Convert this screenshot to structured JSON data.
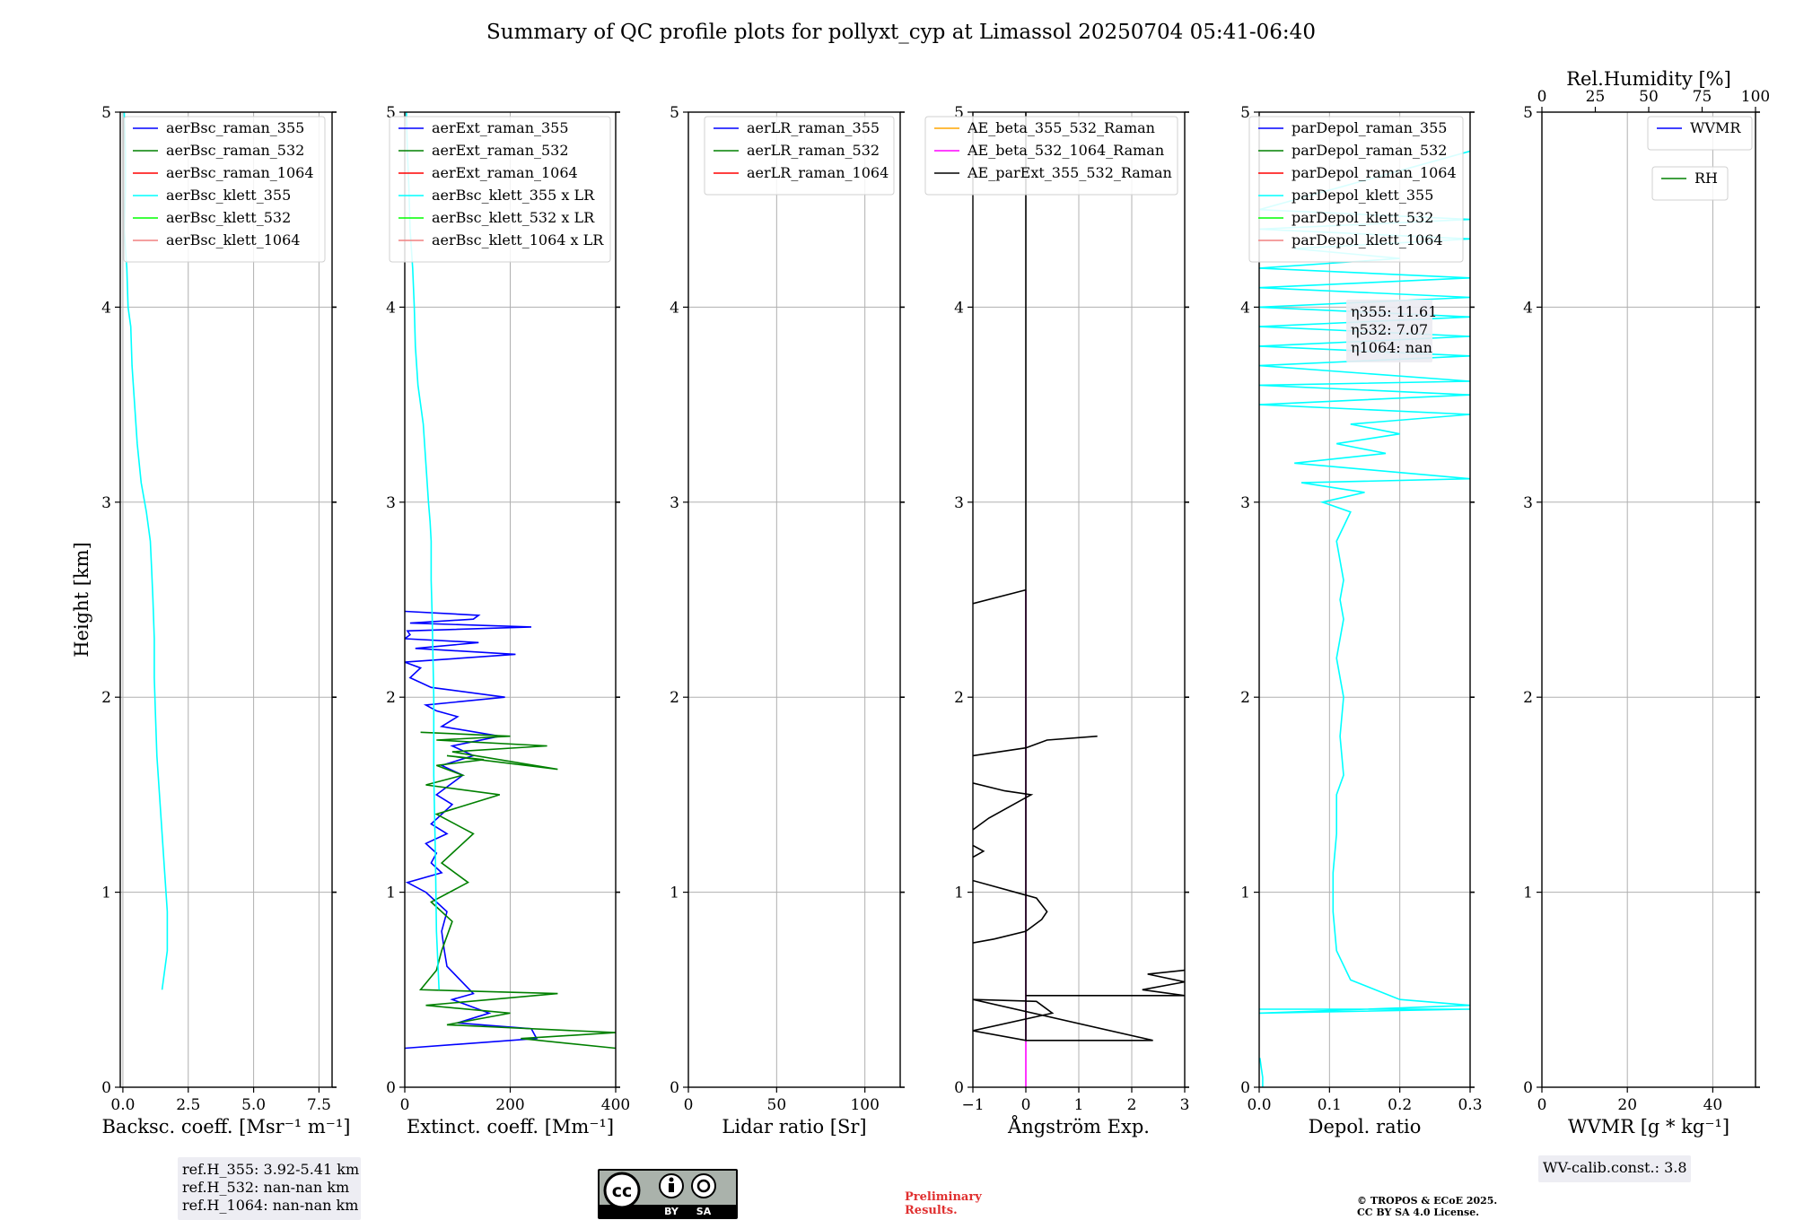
{
  "title": "Summary of QC profile plots for pollyxt_cyp at Limassol 20250704 05:41-06:40",
  "chart_data": [
    {
      "type": "line",
      "xlabel": "Backsc. coeff. [Msr⁻¹ m⁻¹]",
      "ylabel": "Height [km]",
      "xlim": [
        -0.1,
        8.0
      ],
      "ylim": [
        0,
        5
      ],
      "xticks": [
        0.0,
        2.5,
        5.0,
        7.5
      ],
      "xtick_labels": [
        "0.0",
        "2.5",
        "5.0",
        "7.5"
      ],
      "yticks": [
        0,
        1,
        2,
        3,
        4,
        5
      ],
      "ytick_labels": [
        "0",
        "1",
        "2",
        "3",
        "4",
        "5"
      ],
      "grid": true,
      "legend_position": "top-right",
      "legend": [
        {
          "label": "aerBsc_raman_355",
          "color": "#0000ff"
        },
        {
          "label": "aerBsc_raman_532",
          "color": "#008000"
        },
        {
          "label": "aerBsc_raman_1064",
          "color": "#ff0000"
        },
        {
          "label": "aerBsc_klett_355",
          "color": "#00ffff"
        },
        {
          "label": "aerBsc_klett_532",
          "color": "#00ff00"
        },
        {
          "label": "aerBsc_klett_1064",
          "color": "#f08080"
        }
      ],
      "series": [
        {
          "name": "aerBsc_klett_355",
          "color": "#00ffff",
          "x": [
            1.5,
            1.7,
            1.7,
            1.6,
            1.5,
            1.4,
            1.3,
            1.25,
            1.2,
            1.2,
            1.15,
            1.1,
            1.05,
            0.9,
            0.7,
            0.55,
            0.45,
            0.35,
            0.3,
            0.2,
            0.15,
            0.05,
            0.1,
            0.1,
            0.05
          ],
          "y": [
            0.5,
            0.7,
            0.9,
            1.1,
            1.3,
            1.5,
            1.7,
            1.9,
            2.1,
            2.3,
            2.5,
            2.65,
            2.8,
            2.95,
            3.1,
            3.3,
            3.5,
            3.7,
            3.9,
            4.0,
            4.2,
            4.4,
            4.6,
            4.8,
            5.0
          ]
        }
      ],
      "info_box": [
        "ref.H_355: 3.92-5.41 km",
        "ref.H_532: nan-nan km",
        "ref.H_1064: nan-nan km"
      ]
    },
    {
      "type": "line",
      "xlabel": "Extinct. coeff. [Mm⁻¹]",
      "xlim": [
        0,
        400
      ],
      "ylim": [
        0,
        5
      ],
      "xticks": [
        0,
        200,
        400
      ],
      "xtick_labels": [
        "0",
        "200",
        "400"
      ],
      "yticks": [
        0,
        1,
        2,
        3,
        4,
        5
      ],
      "ytick_labels": [
        "0",
        "1",
        "2",
        "3",
        "4",
        "5"
      ],
      "grid": true,
      "legend_position": "top-right",
      "legend": [
        {
          "label": "aerExt_raman_355",
          "color": "#0000ff"
        },
        {
          "label": "aerExt_raman_532",
          "color": "#008000"
        },
        {
          "label": "aerExt_raman_1064",
          "color": "#ff0000"
        },
        {
          "label": "aerBsc_klett_355 x LR",
          "color": "#00ffff"
        },
        {
          "label": "aerBsc_klett_532 x LR",
          "color": "#00ff00"
        },
        {
          "label": "aerBsc_klett_1064 x LR",
          "color": "#f08080"
        }
      ],
      "series": [
        {
          "name": "aerExt_raman_355",
          "color": "#0000ff",
          "x": [
            0,
            250,
            240,
            100,
            160,
            90,
            130,
            80,
            75,
            70,
            80,
            40,
            5,
            70,
            50,
            60,
            40,
            80,
            50,
            90,
            60,
            110,
            70,
            130,
            90,
            180,
            70,
            100,
            60,
            40,
            190,
            50,
            10,
            30,
            0,
            210,
            20,
            140,
            0,
            10,
            5,
            240,
            10,
            130,
            140,
            0
          ],
          "y": [
            0.2,
            0.25,
            0.3,
            0.33,
            0.38,
            0.45,
            0.48,
            0.62,
            0.7,
            0.8,
            0.9,
            1.0,
            1.05,
            1.1,
            1.15,
            1.2,
            1.25,
            1.3,
            1.35,
            1.45,
            1.5,
            1.6,
            1.65,
            1.7,
            1.75,
            1.8,
            1.85,
            1.9,
            1.93,
            1.96,
            2.0,
            2.05,
            2.1,
            2.15,
            2.18,
            2.22,
            2.25,
            2.28,
            2.3,
            2.32,
            2.34,
            2.36,
            2.38,
            2.4,
            2.42,
            2.44
          ]
        },
        {
          "name": "aerExt_raman_532",
          "color": "#008000",
          "x": [
            400,
            220,
            400,
            80,
            200,
            40,
            290,
            30,
            60,
            70,
            90,
            50,
            120,
            70,
            130,
            60,
            180,
            40,
            110,
            60,
            150,
            80,
            290,
            90,
            270,
            60,
            200,
            30
          ],
          "y": [
            0.2,
            0.25,
            0.28,
            0.32,
            0.38,
            0.42,
            0.48,
            0.5,
            0.6,
            0.7,
            0.85,
            0.95,
            1.05,
            1.15,
            1.3,
            1.4,
            1.5,
            1.55,
            1.6,
            1.65,
            1.68,
            1.7,
            1.63,
            1.72,
            1.75,
            1.78,
            1.8,
            1.82
          ]
        },
        {
          "name": "aerBsc_klett_355 x LR",
          "color": "#00ffff",
          "x": [
            65,
            60,
            58,
            55,
            55,
            52,
            50,
            50,
            48,
            45,
            40,
            35,
            25,
            20,
            18,
            15,
            10,
            8,
            5,
            3
          ],
          "y": [
            0.5,
            0.8,
            1.2,
            1.6,
            2.0,
            2.4,
            2.6,
            2.8,
            2.9,
            3.0,
            3.2,
            3.4,
            3.6,
            3.8,
            4.0,
            4.2,
            4.4,
            4.6,
            4.8,
            5.0
          ]
        }
      ]
    },
    {
      "type": "line",
      "xlabel": "Lidar ratio [Sr]",
      "xlim": [
        0,
        120
      ],
      "ylim": [
        0,
        5
      ],
      "xticks": [
        0,
        50,
        100
      ],
      "xtick_labels": [
        "0",
        "50",
        "100"
      ],
      "yticks": [
        0,
        1,
        2,
        3,
        4,
        5
      ],
      "ytick_labels": [
        "0",
        "1",
        "2",
        "3",
        "4",
        "5"
      ],
      "grid": true,
      "legend_position": "top-right",
      "legend": [
        {
          "label": "aerLR_raman_355",
          "color": "#0000ff"
        },
        {
          "label": "aerLR_raman_532",
          "color": "#008000"
        },
        {
          "label": "aerLR_raman_1064",
          "color": "#ff0000"
        }
      ],
      "series": []
    },
    {
      "type": "line",
      "xlabel": "Ångström Exp.",
      "xlim": [
        -1,
        3
      ],
      "ylim": [
        0,
        5
      ],
      "xticks": [
        -1,
        0,
        1,
        2,
        3
      ],
      "xtick_labels": [
        "−1",
        "0",
        "1",
        "2",
        "3"
      ],
      "yticks": [
        0,
        1,
        2,
        3,
        4,
        5
      ],
      "ytick_labels": [
        "0",
        "1",
        "2",
        "3",
        "4",
        "5"
      ],
      "grid": true,
      "legend_position": "top-right",
      "legend": [
        {
          "label": "AE_beta_355_532_Raman",
          "color": "#ffa500"
        },
        {
          "label": "AE_beta_532_1064_Raman",
          "color": "#ff00ff"
        },
        {
          "label": "AE_parExt_355_532_Raman",
          "color": "#000000"
        }
      ],
      "series": [
        {
          "name": "AE_beta_532_1064_Raman",
          "color": "#ff00ff",
          "x": [
            0,
            0
          ],
          "y": [
            0.0,
            2.55
          ]
        },
        {
          "name": "AE_parExt_355_532_Raman",
          "color": "#000000",
          "x": [
            0,
            0,
            0,
            -1,
            0.5,
            0.2,
            -1,
            2.4,
            0,
            0,
            3,
            2.2,
            3,
            2.3,
            3
          ],
          "y": [
            5.0,
            2.55,
            0.24,
            0.29,
            0.38,
            0.44,
            0.45,
            0.24,
            0.24,
            0.47,
            0.47,
            0.5,
            0.54,
            0.58,
            0.6
          ]
        },
        {
          "name": "AE_parExt_355_532_Raman",
          "color": "#000000",
          "x": [
            -1,
            -0.6,
            0,
            0.3,
            0.4,
            0.2,
            -1
          ],
          "y": [
            0.74,
            0.76,
            0.8,
            0.86,
            0.9,
            0.97,
            1.06
          ]
        },
        {
          "name": "AE_parExt_355_532_Raman",
          "color": "#000000",
          "x": [
            -1,
            -0.8,
            -1
          ],
          "y": [
            1.18,
            1.21,
            1.24
          ]
        },
        {
          "name": "AE_parExt_355_532_Raman",
          "color": "#000000",
          "x": [
            -1,
            -0.7,
            0.1,
            -0.4,
            -1
          ],
          "y": [
            1.32,
            1.38,
            1.5,
            1.52,
            1.56
          ]
        },
        {
          "name": "AE_parExt_355_532_Raman",
          "color": "#000000",
          "x": [
            -1,
            0,
            0.4,
            1.35
          ],
          "y": [
            1.7,
            1.74,
            1.78,
            1.8
          ]
        },
        {
          "name": "AE_parExt_355_532_Raman",
          "color": "#000000",
          "x": [
            -1,
            0
          ],
          "y": [
            2.48,
            2.55
          ]
        }
      ]
    },
    {
      "type": "line",
      "xlabel": "Depol. ratio",
      "xlim": [
        0,
        0.3
      ],
      "ylim": [
        0,
        5
      ],
      "xticks": [
        0.0,
        0.1,
        0.2,
        0.3
      ],
      "xtick_labels": [
        "0.0",
        "0.1",
        "0.2",
        "0.3"
      ],
      "yticks": [
        0,
        1,
        2,
        3,
        4,
        5
      ],
      "ytick_labels": [
        "0",
        "1",
        "2",
        "3",
        "4",
        "5"
      ],
      "grid": true,
      "legend_position": "top-left",
      "legend": [
        {
          "label": "parDepol_raman_355",
          "color": "#0000ff"
        },
        {
          "label": "parDepol_raman_532",
          "color": "#008000"
        },
        {
          "label": "parDepol_raman_1064",
          "color": "#ff0000"
        },
        {
          "label": "parDepol_klett_355",
          "color": "#00ffff"
        },
        {
          "label": "parDepol_klett_532",
          "color": "#00ff00"
        },
        {
          "label": "parDepol_klett_1064",
          "color": "#f08080"
        }
      ],
      "series": [
        {
          "name": "parDepol_klett_355",
          "color": "#00ffff",
          "x": [
            0.0,
            0.3,
            0.0,
            0.3,
            0.2,
            0.13,
            0.11,
            0.105,
            0.105,
            0.11,
            0.11,
            0.12,
            0.115,
            0.12,
            0.11,
            0.12,
            0.115,
            0.12,
            0.11,
            0.13,
            0.09,
            0.15,
            0.06,
            0.3,
            0.05,
            0.18,
            0.11,
            0.2,
            0.13,
            0.3,
            0.0,
            0.3,
            0.0,
            0.3,
            0.0,
            0.3,
            0.0,
            0.3,
            0.0,
            0.3,
            0.0,
            0.3,
            0.0,
            0.3,
            0.0,
            0.2,
            0.05,
            0.3,
            0.0,
            0.3,
            0.0,
            0.3
          ],
          "y": [
            0.4,
            0.4,
            0.38,
            0.42,
            0.45,
            0.55,
            0.7,
            0.9,
            1.1,
            1.3,
            1.5,
            1.6,
            1.8,
            2.0,
            2.2,
            2.4,
            2.5,
            2.6,
            2.8,
            2.95,
            3.0,
            3.05,
            3.1,
            3.12,
            3.2,
            3.25,
            3.3,
            3.35,
            3.4,
            3.45,
            3.5,
            3.55,
            3.6,
            3.62,
            3.7,
            3.75,
            3.8,
            3.85,
            3.9,
            3.95,
            4.0,
            4.05,
            4.1,
            4.15,
            4.2,
            4.25,
            4.3,
            4.35,
            4.4,
            4.45,
            4.5,
            4.8
          ]
        },
        {
          "name": "parDepol_klett_355",
          "color": "#00ffff",
          "x": [
            0.005,
            0.005,
            0.003,
            0.001
          ],
          "y": [
            0.0,
            0.05,
            0.1,
            0.15
          ]
        }
      ],
      "info_box": [
        "η355: 11.61",
        "η532: 7.07",
        "η1064: nan"
      ]
    },
    {
      "type": "line",
      "xlabel": "WVMR [g * kg⁻¹]",
      "xlim": [
        0,
        50
      ],
      "ylim": [
        0,
        5
      ],
      "xticks": [
        0,
        20,
        40
      ],
      "xtick_labels": [
        "0",
        "20",
        "40"
      ],
      "yticks": [
        0,
        1,
        2,
        3,
        4,
        5
      ],
      "ytick_labels": [
        "0",
        "1",
        "2",
        "3",
        "4",
        "5"
      ],
      "grid": true,
      "secondary_xlabel": "Rel.Humidity [%]",
      "secondary_xlim": [
        0,
        100
      ],
      "secondary_xticks": [
        0,
        25,
        50,
        75,
        100
      ],
      "secondary_xtick_labels": [
        "0",
        "25",
        "50",
        "75",
        "100"
      ],
      "legend_position": "top-right",
      "legend": [
        {
          "label": "WVMR",
          "color": "#0000ff"
        }
      ],
      "legend2": [
        {
          "label": "RH",
          "color": "#008000"
        }
      ],
      "series": [],
      "info_box": [
        "WV-calib.const.: 3.8"
      ]
    }
  ],
  "footer": {
    "cc_license_by": "BY",
    "cc_license_sa": "SA",
    "preliminary_line1": "Preliminary",
    "preliminary_line2": "Results.",
    "copyright_line1": "© TROPOS & ECoE 2025.",
    "copyright_line2": "CC BY SA 4.0 License."
  }
}
